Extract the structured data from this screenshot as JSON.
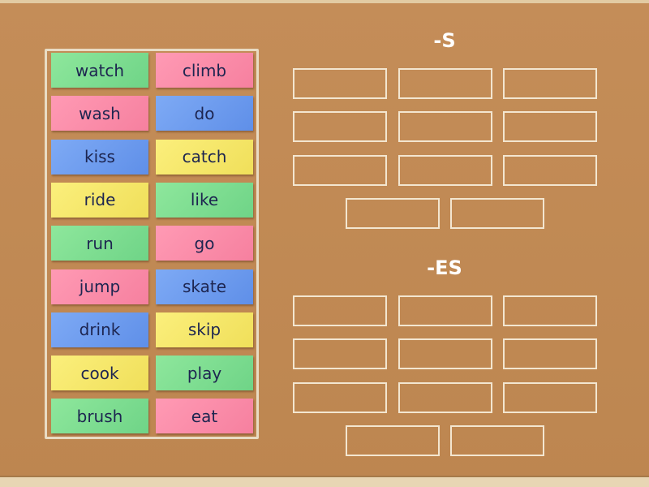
{
  "cards": [
    {
      "word": "watch",
      "color": "green"
    },
    {
      "word": "climb",
      "color": "pink"
    },
    {
      "word": "wash",
      "color": "pink"
    },
    {
      "word": "do",
      "color": "blue"
    },
    {
      "word": "kiss",
      "color": "blue"
    },
    {
      "word": "catch",
      "color": "yellow"
    },
    {
      "word": "ride",
      "color": "yellow"
    },
    {
      "word": "like",
      "color": "green"
    },
    {
      "word": "run",
      "color": "green"
    },
    {
      "word": "go",
      "color": "pink"
    },
    {
      "word": "jump",
      "color": "pink"
    },
    {
      "word": "skate",
      "color": "blue"
    },
    {
      "word": "drink",
      "color": "blue"
    },
    {
      "word": "skip",
      "color": "yellow"
    },
    {
      "word": "cook",
      "color": "yellow"
    },
    {
      "word": "play",
      "color": "green"
    },
    {
      "word": "brush",
      "color": "green"
    },
    {
      "word": "eat",
      "color": "pink"
    }
  ],
  "groups": [
    {
      "title": "-S",
      "slots": 11
    },
    {
      "title": "-ES",
      "slots": 11
    }
  ],
  "colors": {
    "green": "#7ddc8c",
    "pink": "#f98aa5",
    "blue": "#6d9cee",
    "yellow": "#f5e66a",
    "text": "#1d2550"
  }
}
